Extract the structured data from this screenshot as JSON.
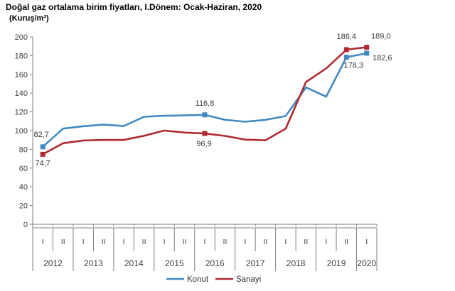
{
  "title": "Doğal gaz ortalama birim fiyatları, I.Dönem: Ocak-Haziran, 2020",
  "subtitle": "(Kuruş/m³)",
  "chart_data": {
    "type": "line",
    "title": "Doğal gaz ortalama birim fiyatları, I.Dönem: Ocak-Haziran, 2020",
    "unit_label": "(Kuruş/m³)",
    "grid": false,
    "ylim": [
      0,
      200
    ],
    "ytick_step": 20,
    "yticks": [
      0,
      20,
      40,
      60,
      80,
      100,
      120,
      140,
      160,
      180,
      200
    ],
    "periods": [
      "I",
      "II",
      "I",
      "II",
      "I",
      "II",
      "I",
      "II",
      "I",
      "II",
      "I",
      "II",
      "I",
      "II",
      "I",
      "II",
      "I"
    ],
    "years": [
      {
        "label": "2012",
        "span": 2
      },
      {
        "label": "2013",
        "span": 2
      },
      {
        "label": "2014",
        "span": 2
      },
      {
        "label": "2015",
        "span": 2
      },
      {
        "label": "2016",
        "span": 2
      },
      {
        "label": "2017",
        "span": 2
      },
      {
        "label": "2018",
        "span": 2
      },
      {
        "label": "2019",
        "span": 2
      },
      {
        "label": "2020",
        "span": 1
      }
    ],
    "legend_position": "bottom-center",
    "series": [
      {
        "name": "Konut",
        "color": "#4189C1",
        "values": [
          82.7,
          102.1,
          104.7,
          106.4,
          104.9,
          114.8,
          115.8,
          116.2,
          116.8,
          111.5,
          109.5,
          111.5,
          115.5,
          146.1,
          136.2,
          178.3,
          182.6
        ],
        "point_labels": [
          {
            "index": 0,
            "text": "82,7",
            "dx": -2,
            "dy": -14
          },
          {
            "index": 8,
            "text": "116,8",
            "dx": 0,
            "dy": -13
          },
          {
            "index": 15,
            "text": "178,3",
            "dx": 10,
            "dy": 15
          },
          {
            "index": 16,
            "text": "182,6",
            "dx": 22,
            "dy": 10
          }
        ]
      },
      {
        "name": "Sanayi",
        "color": "#AF2B31",
        "values": [
          74.7,
          86.5,
          89.5,
          90.0,
          90.0,
          94.5,
          100.1,
          97.9,
          96.9,
          94.3,
          90.4,
          89.6,
          102.1,
          151.9,
          166.4,
          186.4,
          189.0
        ],
        "point_labels": [
          {
            "index": 0,
            "text": "74,7",
            "dx": 0,
            "dy": 16
          },
          {
            "index": 8,
            "text": "96,9",
            "dx": -1,
            "dy": 18
          },
          {
            "index": 15,
            "text": "186,4",
            "dx": 0,
            "dy": -15
          },
          {
            "index": 16,
            "text": "189,0",
            "dx": 20,
            "dy": -12
          }
        ]
      }
    ]
  }
}
